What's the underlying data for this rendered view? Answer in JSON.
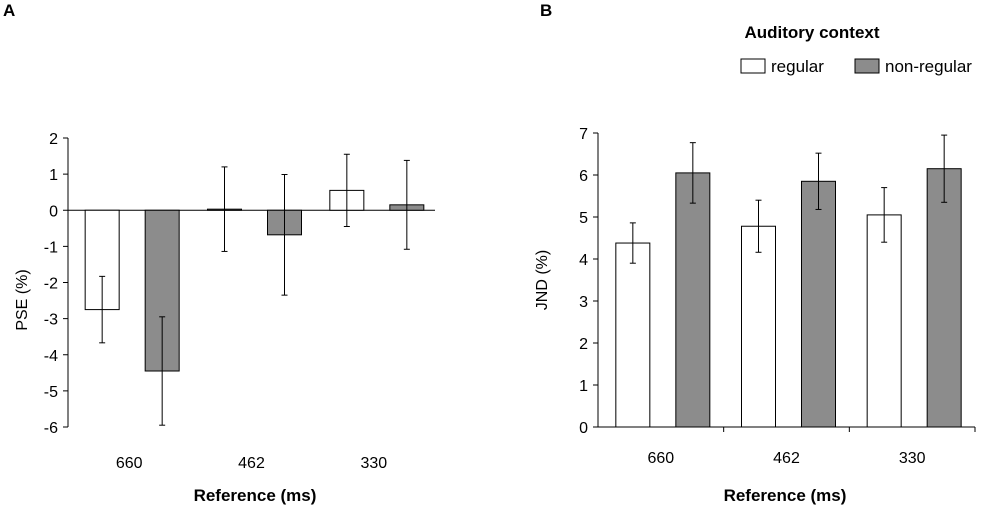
{
  "figure": {
    "legend_title": "Auditory context"
  },
  "chart_data": [
    {
      "panel": "A",
      "type": "bar",
      "categories": [
        "660",
        "462",
        "330"
      ],
      "series": [
        {
          "name": "regular",
          "color": "#ffffff",
          "values": [
            -2.75,
            0.03,
            0.55
          ],
          "errors": [
            0.92,
            1.17,
            1.0
          ]
        },
        {
          "name": "non-regular",
          "color": "#8c8c8c",
          "values": [
            -4.45,
            -0.68,
            0.15
          ],
          "errors": [
            1.5,
            1.67,
            1.23
          ]
        }
      ],
      "xlabel": "Reference (ms)",
      "ylabel": "PSE (%)",
      "ylim": [
        -6,
        2
      ],
      "yticks": [
        "2",
        "1",
        "0",
        "-1",
        "-2",
        "-3",
        "-4",
        "-5",
        "-6"
      ],
      "grid": false
    },
    {
      "panel": "B",
      "type": "bar",
      "categories": [
        "660",
        "462",
        "330"
      ],
      "series": [
        {
          "name": "regular",
          "color": "#ffffff",
          "values": [
            4.38,
            4.78,
            5.05
          ],
          "errors": [
            0.48,
            0.62,
            0.65
          ]
        },
        {
          "name": "non-regular",
          "color": "#8c8c8c",
          "values": [
            6.05,
            5.85,
            6.15
          ],
          "errors": [
            0.72,
            0.67,
            0.8
          ]
        }
      ],
      "xlabel": "Reference (ms)",
      "ylabel": "JND (%)",
      "ylim": [
        0,
        7
      ],
      "yticks": [
        "7",
        "6",
        "5",
        "4",
        "3",
        "2",
        "1",
        "0"
      ],
      "grid": false,
      "legend": "top-right"
    }
  ]
}
